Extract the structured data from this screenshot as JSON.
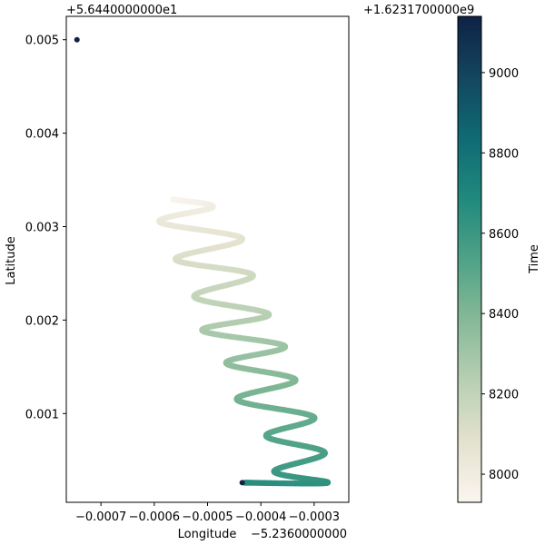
{
  "chart_data": {
    "type": "scatter",
    "xlabel": "Longitude",
    "ylabel": "Latitude",
    "x_offset_label": "−5.2360000000",
    "y_offset_label": "+5.6440000000e1",
    "x_ticks": [
      -0.0007,
      -0.0006,
      -0.0005,
      -0.0004,
      -0.0003
    ],
    "x_tick_labels": [
      "−0.0007",
      "−0.0006",
      "−0.0005",
      "−0.0004",
      "−0.0003"
    ],
    "y_ticks": [
      0.001,
      0.002,
      0.003,
      0.004,
      0.005
    ],
    "y_tick_labels": [
      "0.001",
      "0.002",
      "0.003",
      "0.004",
      "0.005"
    ],
    "xlim": [
      -0.000765,
      -0.000235
    ],
    "ylim": [
      5e-05,
      0.00525
    ],
    "colorbar": {
      "label": "Time",
      "offset_label": "+1.6231700000e9",
      "range": [
        7930,
        9140
      ],
      "ticks": [
        8000,
        8200,
        8400,
        8600,
        8800,
        9000
      ],
      "tick_labels": [
        "8000",
        "8200",
        "8400",
        "8600",
        "8800",
        "9000"
      ],
      "colormap_stops": [
        "#fbf5f0",
        "#e3e2cf",
        "#b8cfb3",
        "#86b998",
        "#4fa287",
        "#20897d",
        "#0f6a74",
        "#13465f",
        "#0f2144"
      ]
    },
    "series": [
      {
        "marker_color_by": "time",
        "path_description": "zigzag track",
        "points": [
          {
            "x": -0.000565,
            "y": 0.00329,
            "t": 7940
          },
          {
            "x": -0.00049,
            "y": 0.00321,
            "t": 7990
          },
          {
            "x": -0.00059,
            "y": 0.00305,
            "t": 8030
          },
          {
            "x": -0.000435,
            "y": 0.00287,
            "t": 8070
          },
          {
            "x": -0.00056,
            "y": 0.00265,
            "t": 8110
          },
          {
            "x": -0.000415,
            "y": 0.00248,
            "t": 8150
          },
          {
            "x": -0.000525,
            "y": 0.00225,
            "t": 8190
          },
          {
            "x": -0.000385,
            "y": 0.00206,
            "t": 8230
          },
          {
            "x": -0.00051,
            "y": 0.00189,
            "t": 8270
          },
          {
            "x": -0.000355,
            "y": 0.00172,
            "t": 8310
          },
          {
            "x": -0.000465,
            "y": 0.00154,
            "t": 8350
          },
          {
            "x": -0.000335,
            "y": 0.00136,
            "t": 8390
          },
          {
            "x": -0.000445,
            "y": 0.00115,
            "t": 8430
          },
          {
            "x": -0.0003,
            "y": 0.00096,
            "t": 8470
          },
          {
            "x": -0.00039,
            "y": 0.00076,
            "t": 8510
          },
          {
            "x": -0.00028,
            "y": 0.00058,
            "t": 8550
          },
          {
            "x": -0.000375,
            "y": 0.00038,
            "t": 8590
          },
          {
            "x": -0.000275,
            "y": 0.00026,
            "t": 8630
          },
          {
            "x": -0.00043,
            "y": 0.00026,
            "t": 8660
          }
        ]
      },
      {
        "name": "",
        "points": [
          {
            "x": -0.000745,
            "y": 0.005,
            "t": 9130
          }
        ]
      }
    ]
  }
}
